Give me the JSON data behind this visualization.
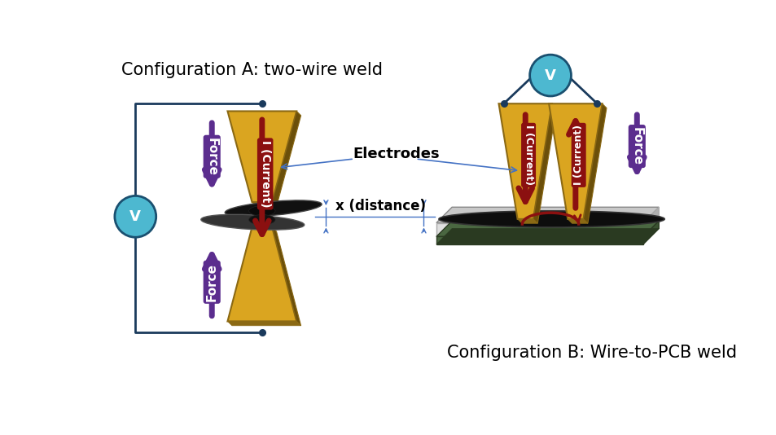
{
  "title_A": "Configuration A: two-wire weld",
  "title_B": "Configuration B: Wire-to-PCB weld",
  "electrode_label": "Electrodes",
  "distance_label": "x (distance)",
  "voltage_label": "V",
  "current_label": "I (Current)",
  "force_label": "Force",
  "bg_color": "#ffffff",
  "electrode_color": "#DAA520",
  "electrode_shadow": "#8B6914",
  "electrode_side": "#6B4F0A",
  "current_arrow_color": "#8B1010",
  "force_arrow_color": "#5B2D8E",
  "voltage_circle_color": "#4DB8D0",
  "voltage_circle_edge": "#1a5070",
  "wire_color": "#1a3a5c",
  "annotation_line_color": "#4472C4",
  "wire_body_color": "#111111",
  "wire_body_grad": "#3a3a3a",
  "pcb_top_color": "#c8c8c8",
  "pcb_front_color": "#e0e0e0",
  "pcb_right_color": "#b0b0b0",
  "pcb_bottom_color": "#4a6741",
  "pcb_bottom_edge": "#2a3a21",
  "title_fontsize": 15,
  "label_fontsize": 13
}
